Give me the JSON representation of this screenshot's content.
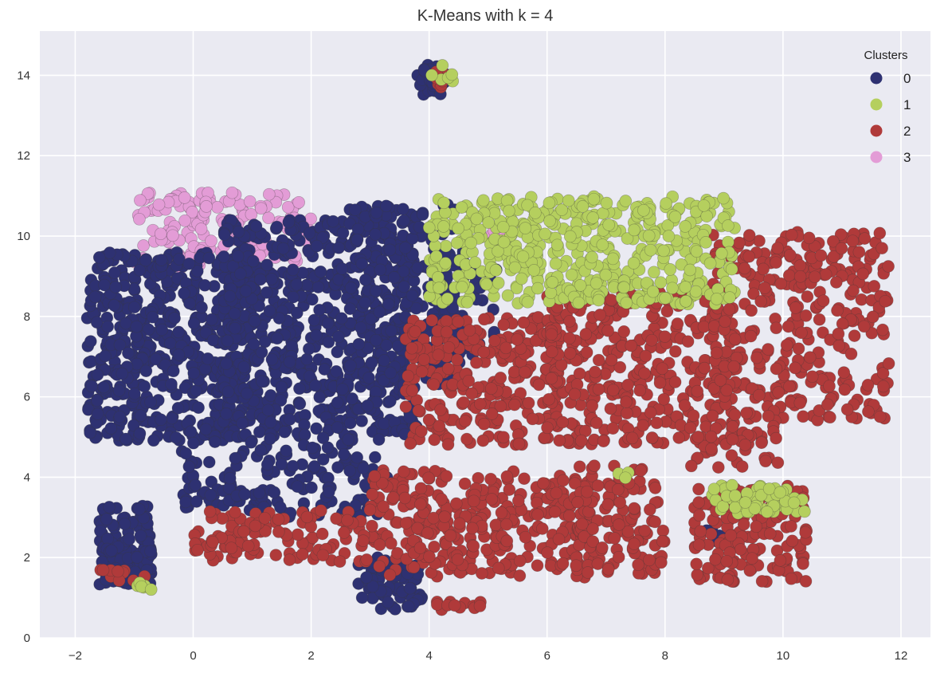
{
  "chart_data": {
    "type": "scatter",
    "title": "K-Means with k = 4",
    "xlabel": "",
    "ylabel": "",
    "xlim": [
      -2.6,
      12.5
    ],
    "ylim": [
      0,
      15.1
    ],
    "x_ticks": [
      -2,
      0,
      2,
      4,
      6,
      8,
      10,
      12
    ],
    "y_ticks": [
      0,
      2,
      4,
      6,
      8,
      10,
      12,
      14
    ],
    "x_tick_labels": [
      "−2",
      "0",
      "2",
      "4",
      "6",
      "8",
      "10",
      "12"
    ],
    "y_tick_labels": [
      "0",
      "2",
      "4",
      "6",
      "8",
      "10",
      "12",
      "14"
    ],
    "grid": true,
    "background": "#eaeaf2",
    "legend": {
      "title": "Clusters",
      "placement": "top-right",
      "entries": [
        {
          "label": "0",
          "color": "#2e3172"
        },
        {
          "label": "1",
          "color": "#b5cf5e"
        },
        {
          "label": "2",
          "color": "#b03a3a"
        },
        {
          "label": "3",
          "color": "#e39cd6"
        }
      ]
    },
    "series": [
      {
        "cluster": "0",
        "color": "#2e3172",
        "regions": [
          {
            "x": [
              -1.8,
              1.0
            ],
            "y": [
              4.9,
              9.6
            ],
            "n": 520
          },
          {
            "x": [
              0.5,
              3.8
            ],
            "y": [
              5.0,
              10.4
            ],
            "n": 620
          },
          {
            "x": [
              2.6,
              4.6
            ],
            "y": [
              6.2,
              10.8
            ],
            "n": 200
          },
          {
            "x": [
              4.0,
              5.2
            ],
            "y": [
              7.0,
              9.6
            ],
            "n": 60
          },
          {
            "x": [
              -0.2,
              3.3
            ],
            "y": [
              3.0,
              5.0
            ],
            "n": 160
          },
          {
            "x": [
              -1.6,
              -0.7
            ],
            "y": [
              1.3,
              3.3
            ],
            "n": 130
          },
          {
            "x": [
              2.8,
              3.9
            ],
            "y": [
              0.7,
              2.0
            ],
            "n": 70
          },
          {
            "x": [
              3.8,
              4.3
            ],
            "y": [
              13.5,
              14.3
            ],
            "n": 35
          },
          {
            "x": [
              8.7,
              9.1
            ],
            "y": [
              2.3,
              2.7
            ],
            "n": 6
          }
        ]
      },
      {
        "cluster": "1",
        "color": "#b5cf5e",
        "regions": [
          {
            "x": [
              4.0,
              9.2
            ],
            "y": [
              8.3,
              11.0
            ],
            "n": 480
          },
          {
            "x": [
              8.8,
              10.4
            ],
            "y": [
              3.1,
              3.8
            ],
            "n": 60
          },
          {
            "x": [
              -0.95,
              -0.7
            ],
            "y": [
              1.2,
              1.4
            ],
            "n": 6
          },
          {
            "x": [
              4.0,
              4.4
            ],
            "y": [
              13.8,
              14.3
            ],
            "n": 6
          },
          {
            "x": [
              7.2,
              7.4
            ],
            "y": [
              3.9,
              4.2
            ],
            "n": 3
          }
        ]
      },
      {
        "cluster": "2",
        "color": "#b03a3a",
        "regions": [
          {
            "x": [
              3.6,
              6.2
            ],
            "y": [
              4.8,
              8.0
            ],
            "n": 260
          },
          {
            "x": [
              6.0,
              9.2
            ],
            "y": [
              4.8,
              8.6
            ],
            "n": 330
          },
          {
            "x": [
              8.8,
              11.8
            ],
            "y": [
              5.4,
              10.1
            ],
            "n": 330
          },
          {
            "x": [
              3.0,
              6.8
            ],
            "y": [
              1.5,
              4.2
            ],
            "n": 330
          },
          {
            "x": [
              6.4,
              8.0
            ],
            "y": [
              1.6,
              4.3
            ],
            "n": 120
          },
          {
            "x": [
              8.5,
              10.4
            ],
            "y": [
              1.4,
              3.8
            ],
            "n": 170
          },
          {
            "x": [
              8.4,
              10.0
            ],
            "y": [
              4.2,
              5.3
            ],
            "n": 40
          },
          {
            "x": [
              0.0,
              3.0
            ],
            "y": [
              1.9,
              3.2
            ],
            "n": 110
          },
          {
            "x": [
              -1.7,
              -0.8
            ],
            "y": [
              1.4,
              1.7
            ],
            "n": 10
          },
          {
            "x": [
              4.0,
              4.9
            ],
            "y": [
              0.7,
              0.9
            ],
            "n": 12
          },
          {
            "x": [
              4.1,
              4.4
            ],
            "y": [
              13.7,
              14.1
            ],
            "n": 10
          }
        ]
      },
      {
        "cluster": "3",
        "color": "#e39cd6",
        "regions": [
          {
            "x": [
              -1.0,
              2.0
            ],
            "y": [
              9.2,
              11.1
            ],
            "n": 150
          },
          {
            "x": [
              4.8,
              5.4
            ],
            "y": [
              10.0,
              10.3
            ],
            "n": 5
          }
        ]
      }
    ]
  }
}
